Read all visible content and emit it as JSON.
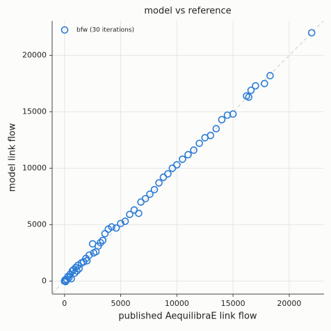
{
  "chart_data": {
    "type": "scatter",
    "title": "model vs reference",
    "x_label": "published AequilibraE link flow",
    "y_label": "model link flow",
    "xlim": [
      -1100,
      23100
    ],
    "ylim": [
      -1150,
      23050
    ],
    "xticks": [
      0,
      5000,
      10000,
      15000,
      20000
    ],
    "yticks": [
      0,
      5000,
      10000,
      15000,
      20000
    ],
    "grid": true,
    "legend": "upper left",
    "series": [
      {
        "name": "bfw (30 iterations)",
        "color": "#2b7bd6",
        "x": [
          0,
          50,
          100,
          200,
          300,
          400,
          500,
          600,
          700,
          800,
          900,
          1000,
          1100,
          1200,
          1300,
          1500,
          1700,
          1900,
          2000,
          2200,
          2500,
          2600,
          2800,
          3000,
          3200,
          3400,
          3600,
          3900,
          4200,
          4600,
          5000,
          5400,
          5800,
          6200,
          6600,
          6800,
          7200,
          7600,
          8000,
          8400,
          8800,
          9200,
          9600,
          10000,
          10500,
          11000,
          11500,
          12000,
          12500,
          13000,
          13500,
          14000,
          14500,
          15000,
          16200,
          16400,
          16600,
          17000,
          17800,
          18300,
          22000
        ],
        "values": [
          0,
          100,
          -50,
          150,
          400,
          300,
          600,
          200,
          900,
          1000,
          700,
          1200,
          900,
          1400,
          1100,
          1600,
          1700,
          2000,
          1800,
          2300,
          3300,
          2500,
          2600,
          3100,
          3400,
          3600,
          4200,
          4600,
          4800,
          4700,
          5100,
          5300,
          5900,
          6300,
          6000,
          7000,
          7300,
          7700,
          8100,
          8700,
          9200,
          9500,
          10000,
          10300,
          10800,
          11200,
          11600,
          12200,
          12700,
          12900,
          13500,
          14300,
          14700,
          14800,
          16400,
          16300,
          16900,
          17300,
          17500,
          18200,
          22000
        ]
      }
    ]
  }
}
